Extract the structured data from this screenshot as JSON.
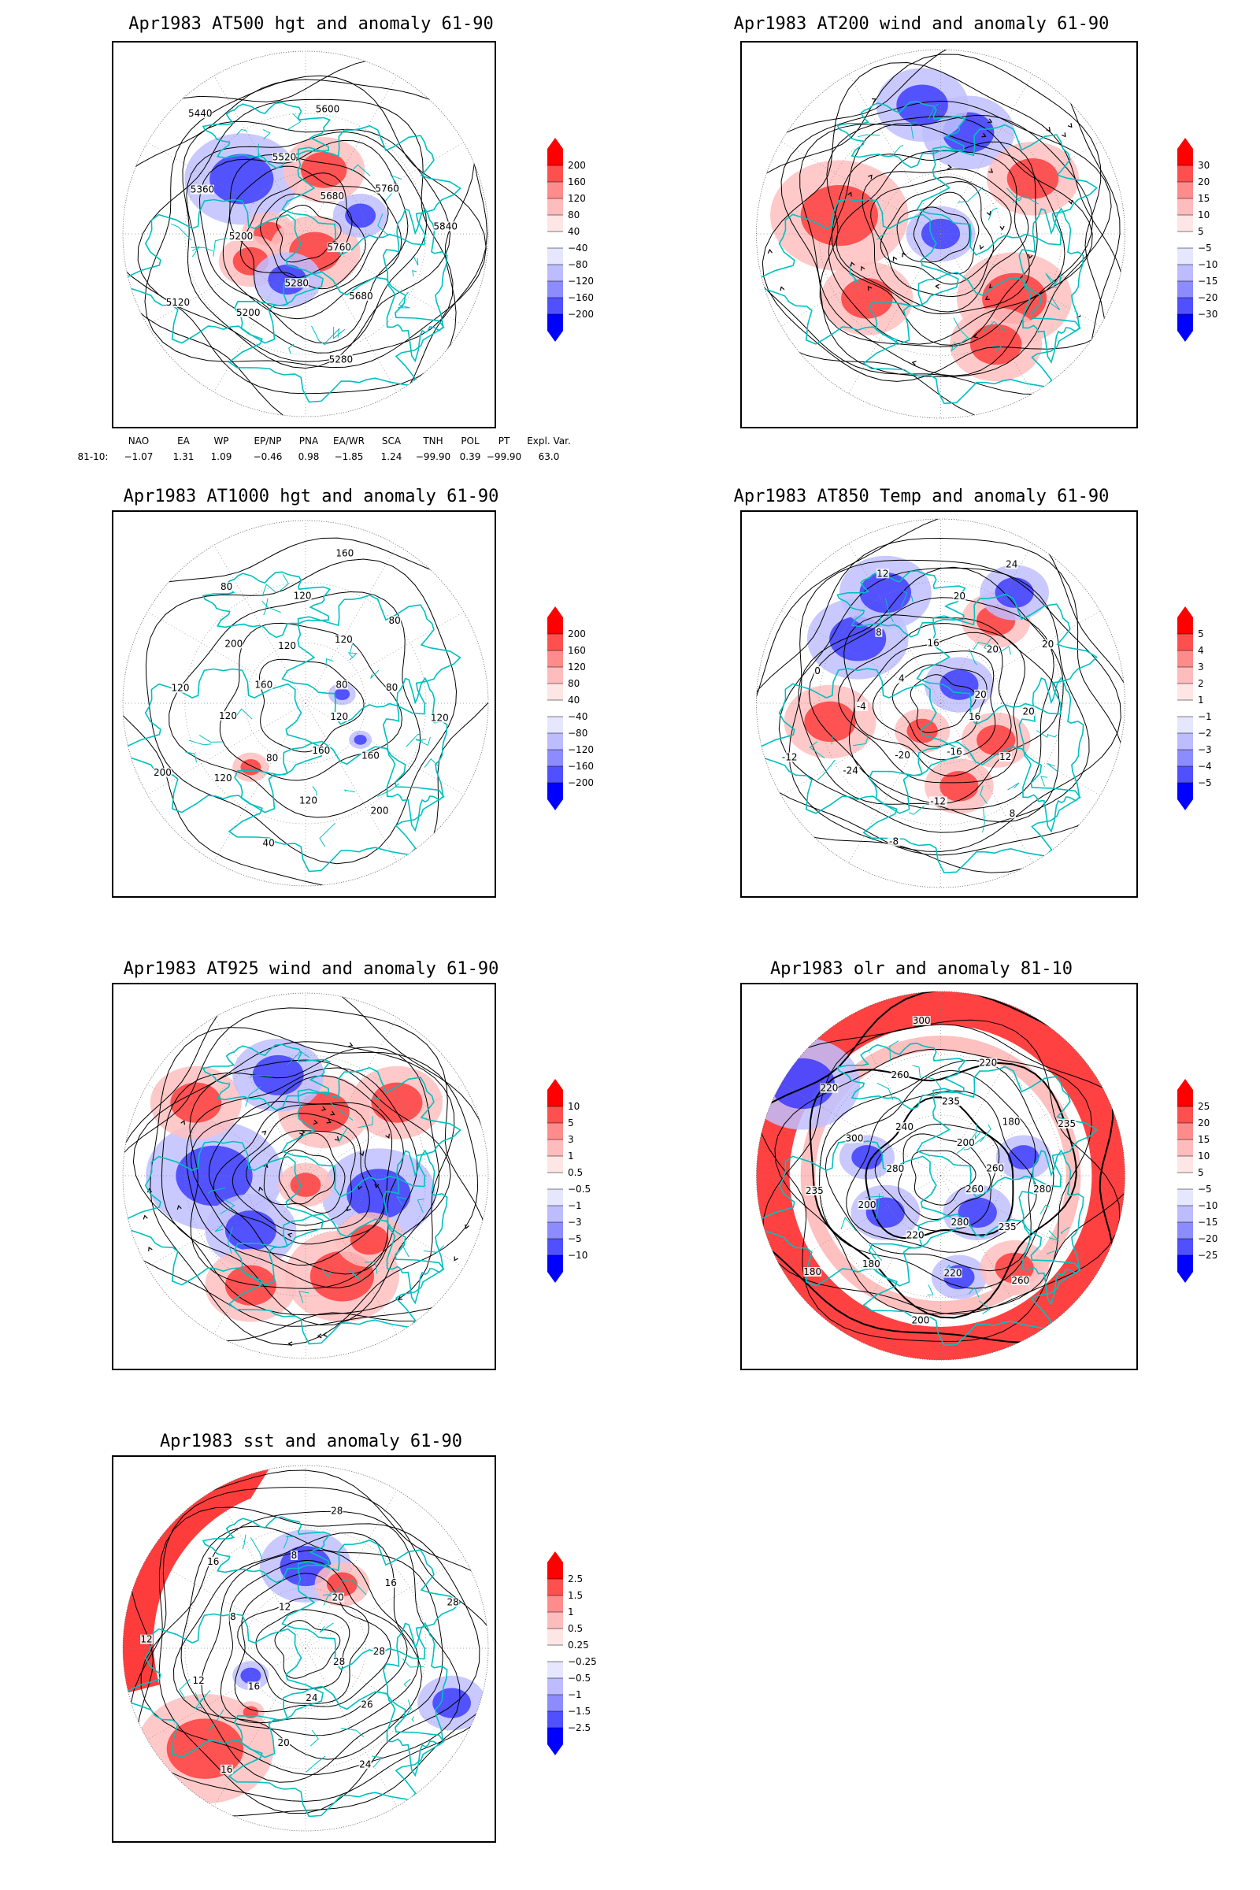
{
  "panels": [
    {
      "id": "p500",
      "title": "Apr1983 AT500 hgt and anomaly 61-90",
      "colorbar": [
        "200",
        "160",
        "120",
        "80",
        "40",
        "−40",
        "−80",
        "−120",
        "−160",
        "−200"
      ],
      "contour_labels": [
        "5760",
        "5680",
        "5280",
        "5280",
        "5200",
        "5120",
        "5200",
        "5360",
        "5440",
        "5520",
        "5600",
        "5680",
        "5760",
        "5840"
      ]
    },
    {
      "id": "p200",
      "title": "Apr1983 AT200 wind and anomaly 61-90",
      "colorbar": [
        "30",
        "20",
        "15",
        "10",
        "5",
        "−5",
        "−10",
        "−15",
        "−20",
        "−30"
      ],
      "contour_labels": []
    },
    {
      "id": "p1000",
      "title": "Apr1983 AT1000 hgt and anomaly 61-90",
      "colorbar": [
        "200",
        "160",
        "120",
        "80",
        "40",
        "−40",
        "−80",
        "−120",
        "−160",
        "−200"
      ],
      "contour_labels": [
        "120",
        "160",
        "200",
        "160",
        "120",
        "40",
        "80",
        "120",
        "200",
        "120",
        "120",
        "160",
        "200",
        "80",
        "120",
        "120",
        "160",
        "120",
        "80",
        "80",
        "80",
        "120"
      ]
    },
    {
      "id": "p850",
      "title": "Apr1983 AT850 Temp and anomaly 61-90",
      "colorbar": [
        "5",
        "4",
        "3",
        "2",
        "1",
        "−1",
        "−2",
        "−3",
        "−4",
        "−5"
      ],
      "contour_labels": [
        "16",
        "12",
        "8",
        "-16",
        "-12",
        "-8",
        "-20",
        "-24",
        "-12",
        "-4",
        "0",
        "4",
        "8",
        "12",
        "16",
        "20",
        "24",
        "20",
        "20",
        "20",
        "20"
      ]
    },
    {
      "id": "p925",
      "title": "Apr1983 AT925 wind and anomaly 61-90",
      "colorbar": [
        "10",
        "5",
        "3",
        "1",
        "0.5",
        "−0.5",
        "−1",
        "−3",
        "−5",
        "−10"
      ],
      "contour_labels": []
    },
    {
      "id": "polr",
      "title": "Apr1983 olr and anomaly 81-10",
      "colorbar": [
        "25",
        "20",
        "15",
        "10",
        "5",
        "−5",
        "−10",
        "−15",
        "−20",
        "−25"
      ],
      "contour_labels": [
        "260",
        "235",
        "260",
        "280",
        "220",
        "200",
        "220",
        "180",
        "180",
        "200",
        "235",
        "280",
        "300",
        "220",
        "240",
        "260",
        "300",
        "235",
        "220",
        "200",
        "180",
        "235",
        "260",
        "280"
      ]
    },
    {
      "id": "psst",
      "title": "Apr1983 sst and anomaly 61-90",
      "colorbar": [
        "2.5",
        "1.5",
        "1",
        "0.5",
        "0.25",
        "−0.25",
        "−0.5",
        "−1",
        "−1.5",
        "−2.5"
      ],
      "contour_labels": [
        "28",
        "26",
        "24",
        "24",
        "20",
        "16",
        "16",
        "12",
        "12",
        "8",
        "16",
        "12",
        "8",
        "28",
        "20",
        "16",
        "28",
        "28"
      ]
    }
  ],
  "indices": {
    "headers": [
      "NAO",
      "EA",
      "WP",
      "EP/NP",
      "PNA",
      "EA/WR",
      "SCA",
      "TNH",
      "POL",
      "PT",
      "Expl. Var."
    ],
    "row_label": "81-10:",
    "values": [
      "−1.07",
      "1.31",
      "1.09",
      "−0.46",
      "0.98",
      "−1.85",
      "1.24",
      "−99.90",
      "0.39",
      "−99.90",
      "63.0"
    ]
  },
  "colors": {
    "positive_strong": "#ff0000",
    "positive_light": "#ffc8c8",
    "negative_strong": "#0000ff",
    "negative_light": "#c8c8ff",
    "coastline": "#00c0c0",
    "contour": "#000000"
  }
}
